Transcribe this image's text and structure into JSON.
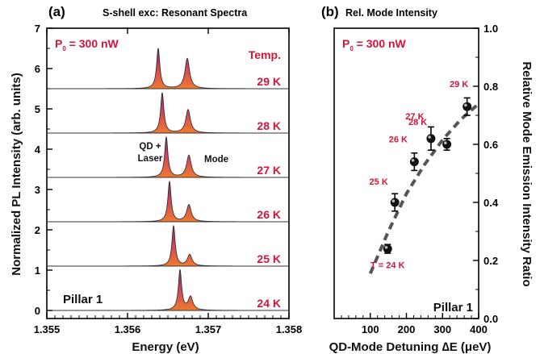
{
  "panel_a": {
    "label": "(a)",
    "title": "S-shell exc: Resonant Spectra",
    "power_text": "P",
    "power_sub": "0",
    "power_value": " = 300 nW",
    "temp_header": "Temp.",
    "sample": "Pillar 1",
    "annotation_qd": "QD +",
    "annotation_laser": "Laser",
    "annotation_mode": "Mode"
  },
  "panel_b": {
    "label": "(b)",
    "title": "Rel. Mode Intensity",
    "power_text": "P",
    "power_sub": "0",
    "power_value": " = 300 nW",
    "sample": "Pillar 1"
  },
  "colors": {
    "accent": "#d4143c",
    "spectrum_top": "#7a2a6a",
    "spectrum_mid": "#d0405a",
    "spectrum_bottom": "#f07a30",
    "dashed_fit": "#555555"
  },
  "chart_data": [
    {
      "type": "area",
      "xlabel": "Energy (eV)",
      "ylabel": "Normalized PL Intensity (arb. units)",
      "xlim": [
        1.355,
        1.358
      ],
      "ylim": [
        -0.2,
        7
      ],
      "xticks": [
        "1.355",
        "1.356",
        "1.357",
        "1.358"
      ],
      "yticks": [
        "0",
        "1",
        "2",
        "3",
        "4",
        "5",
        "6",
        "7"
      ],
      "grid": false,
      "series": [
        {
          "name": "24 K",
          "offset": 0.0,
          "qd_laser_peak": {
            "energy": 1.35665,
            "height": 1.0
          },
          "mode_peak": {
            "energy": 1.35678,
            "height": 0.33
          }
        },
        {
          "name": "25 K",
          "offset": 1.1,
          "qd_laser_peak": {
            "energy": 1.35657,
            "height": 1.0
          },
          "mode_peak": {
            "energy": 1.35677,
            "height": 0.28
          }
        },
        {
          "name": "26 K",
          "offset": 2.2,
          "qd_laser_peak": {
            "energy": 1.35652,
            "height": 1.0
          },
          "mode_peak": {
            "energy": 1.35676,
            "height": 0.42
          }
        },
        {
          "name": "27 K",
          "offset": 3.3,
          "qd_laser_peak": {
            "energy": 1.35648,
            "height": 1.0
          },
          "mode_peak": {
            "energy": 1.35676,
            "height": 0.55
          }
        },
        {
          "name": "28 K",
          "offset": 4.4,
          "qd_laser_peak": {
            "energy": 1.35643,
            "height": 1.0
          },
          "mode_peak": {
            "energy": 1.35675,
            "height": 0.58
          }
        },
        {
          "name": "29 K",
          "offset": 5.5,
          "qd_laser_peak": {
            "energy": 1.35638,
            "height": 1.0
          },
          "mode_peak": {
            "energy": 1.35674,
            "height": 0.75
          }
        }
      ]
    },
    {
      "type": "scatter",
      "xlabel": "QD-Mode Detuning ∆E (μeV)",
      "ylabel": "Relative Mode Emission Intensity Ratio",
      "xlim": [
        0,
        400
      ],
      "ylim": [
        0.0,
        1.0
      ],
      "xticks": [
        "100",
        "200",
        "300",
        "400"
      ],
      "yticks": [
        "0.0",
        "0.2",
        "0.4",
        "0.6",
        "0.8",
        "1.0"
      ],
      "grid": false,
      "points": [
        {
          "label": "T = 24 K",
          "x": 148,
          "y": 0.24,
          "err": 0.015
        },
        {
          "label": "25 K",
          "x": 168,
          "y": 0.4,
          "err": 0.03
        },
        {
          "label": "26 K",
          "x": 222,
          "y": 0.54,
          "err": 0.03
        },
        {
          "label": "27 K",
          "x": 268,
          "y": 0.62,
          "err": 0.04
        },
        {
          "label": "",
          "x": 312,
          "y": 0.6,
          "err": 0.02
        },
        {
          "label": "28 K",
          "x": 312,
          "y": 0.6,
          "err": 0.0
        },
        {
          "label": "29 K",
          "x": 368,
          "y": 0.73,
          "err": 0.03
        }
      ],
      "fit": {
        "style": "dashed",
        "x": [
          100,
          150,
          200,
          250,
          300,
          350,
          400
        ],
        "y": [
          0.155,
          0.3,
          0.43,
          0.53,
          0.615,
          0.685,
          0.74
        ]
      }
    }
  ]
}
